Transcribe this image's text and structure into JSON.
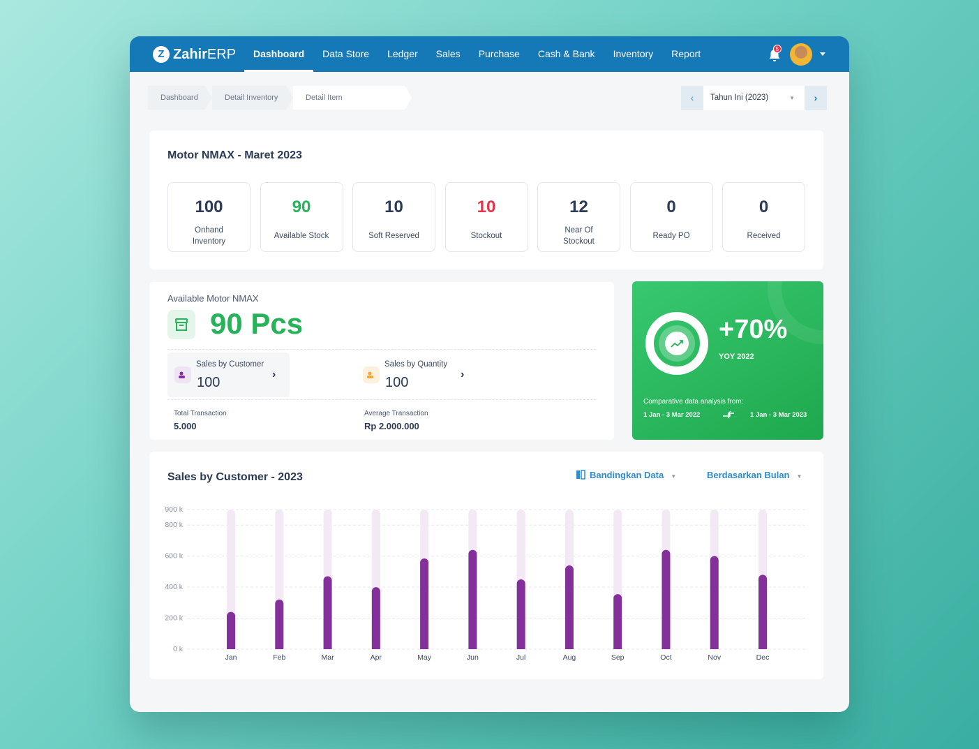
{
  "nav": {
    "logo": "Zahir",
    "logo_suffix": "ERP",
    "items": [
      "Dashboard",
      "Data Store",
      "Ledger",
      "Sales",
      "Purchase",
      "Cash & Bank",
      "Inventory",
      "Report"
    ],
    "notifications": "5"
  },
  "breadcrumb": [
    "Dashboard",
    "Detail Inventory",
    "Detail Item"
  ],
  "period": "Tahun Ini (2023)",
  "summary": {
    "title": "Motor NMAX - Maret 2023",
    "stats": [
      {
        "value": "100",
        "label": "Onhand Inventory",
        "color": "#2b3a55"
      },
      {
        "value": "90",
        "label": "Available Stock",
        "color": "#27b35a"
      },
      {
        "value": "10",
        "label": "Soft Reserved",
        "color": "#2b3a55"
      },
      {
        "value": "10",
        "label": "Stockout",
        "color": "#e8334a"
      },
      {
        "value": "12",
        "label": "Near Of Stockout",
        "color": "#2b3a55"
      },
      {
        "value": "0",
        "label": "Ready PO",
        "color": "#2b3a55"
      },
      {
        "value": "0",
        "label": "Received",
        "color": "#2b3a55"
      }
    ]
  },
  "availability": {
    "label": "Available Motor NMAX",
    "value": "90 Pcs",
    "cards": [
      {
        "label": "Sales by Customer",
        "value": "100"
      },
      {
        "label": "Sales by Quantity",
        "value": "100"
      }
    ],
    "totals": [
      {
        "label": "Total Transaction",
        "value": "5.000"
      },
      {
        "label": "Average Transaction",
        "value": "Rp 2.000.000"
      }
    ]
  },
  "yoy": {
    "value": "+70%",
    "label": "YOY 2022",
    "note": "Comparative data analysis from:",
    "from": "1 Jan - 3 Mar 2022",
    "to": "1 Jan - 3 Mar 2023"
  },
  "chart_controls": [
    "Bandingkan Data",
    "Berdasarkan Bulan"
  ],
  "chart_data": {
    "type": "bar",
    "title": "Sales by Customer - 2023",
    "categories": [
      "Jan",
      "Feb",
      "Mar",
      "Apr",
      "May",
      "Jun",
      "Jul",
      "Aug",
      "Sep",
      "Oct",
      "Nov",
      "Dec"
    ],
    "values": [
      240,
      320,
      470,
      400,
      585,
      640,
      450,
      540,
      355,
      640,
      600,
      480
    ],
    "color": "#84309a",
    "ylim": [
      0,
      900
    ],
    "yticks": [
      {
        "value": 0,
        "label": "0 k"
      },
      {
        "value": 200,
        "label": "200 k"
      },
      {
        "value": 400,
        "label": "400 k"
      },
      {
        "value": 600,
        "label": "600 k"
      },
      {
        "value": 800,
        "label": "800 k"
      },
      {
        "value": 900,
        "label": "900 k"
      }
    ],
    "grid": true
  }
}
